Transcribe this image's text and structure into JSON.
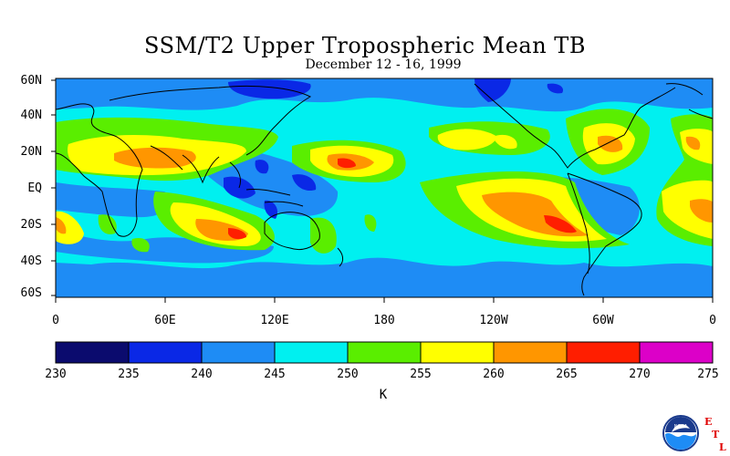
{
  "title": "SSM/T2 Upper Tropospheric Mean TB",
  "subtitle": "December 12 - 16, 1999",
  "lat_labels": [
    "60N",
    "40N",
    "20N",
    "EQ",
    "20S",
    "40S",
    "60S"
  ],
  "lon_labels": [
    "0",
    "60E",
    "120E",
    "180",
    "120W",
    "60W",
    "0"
  ],
  "colorbar": {
    "ticks": [
      "230",
      "235",
      "240",
      "245",
      "250",
      "255",
      "260",
      "265",
      "270",
      "275"
    ],
    "colors": [
      "#0b0b6e",
      "#0a28e6",
      "#1e8cf5",
      "#00f0f0",
      "#5aee00",
      "#ffff00",
      "#ff9600",
      "#ff1e00",
      "#dc00c8"
    ],
    "unit": "K"
  },
  "logo": {
    "text": "NOAA",
    "letters": [
      "E",
      "T",
      "L"
    ]
  }
}
